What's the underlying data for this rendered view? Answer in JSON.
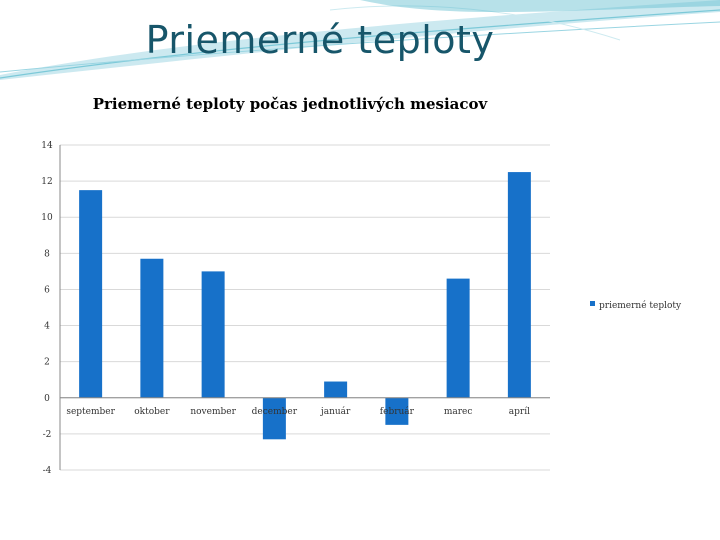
{
  "slide": {
    "title": "Priemerné teploty"
  },
  "colors": {
    "bar": "#1771c9",
    "title": "#17566a",
    "grid": "#d9d9d9",
    "axis": "#888888",
    "swoosh": "#7cc9d8"
  },
  "chart_data": {
    "type": "bar",
    "title": "Priemerné teploty počas jednotlivých mesiacov",
    "categories": [
      "september",
      "oktober",
      "november",
      "december",
      "január",
      "február",
      "marec",
      "apríl"
    ],
    "series": [
      {
        "name": "priemerné teploty",
        "values": [
          11.5,
          7.7,
          7.0,
          -2.3,
          0.9,
          -1.5,
          6.6,
          12.5
        ]
      }
    ],
    "ylim": [
      -4,
      14
    ],
    "yticks": [
      "-4",
      "-2",
      "0",
      "2",
      "4",
      "6",
      "8",
      "10",
      "12",
      "14"
    ],
    "grid": true,
    "legend": "right"
  }
}
